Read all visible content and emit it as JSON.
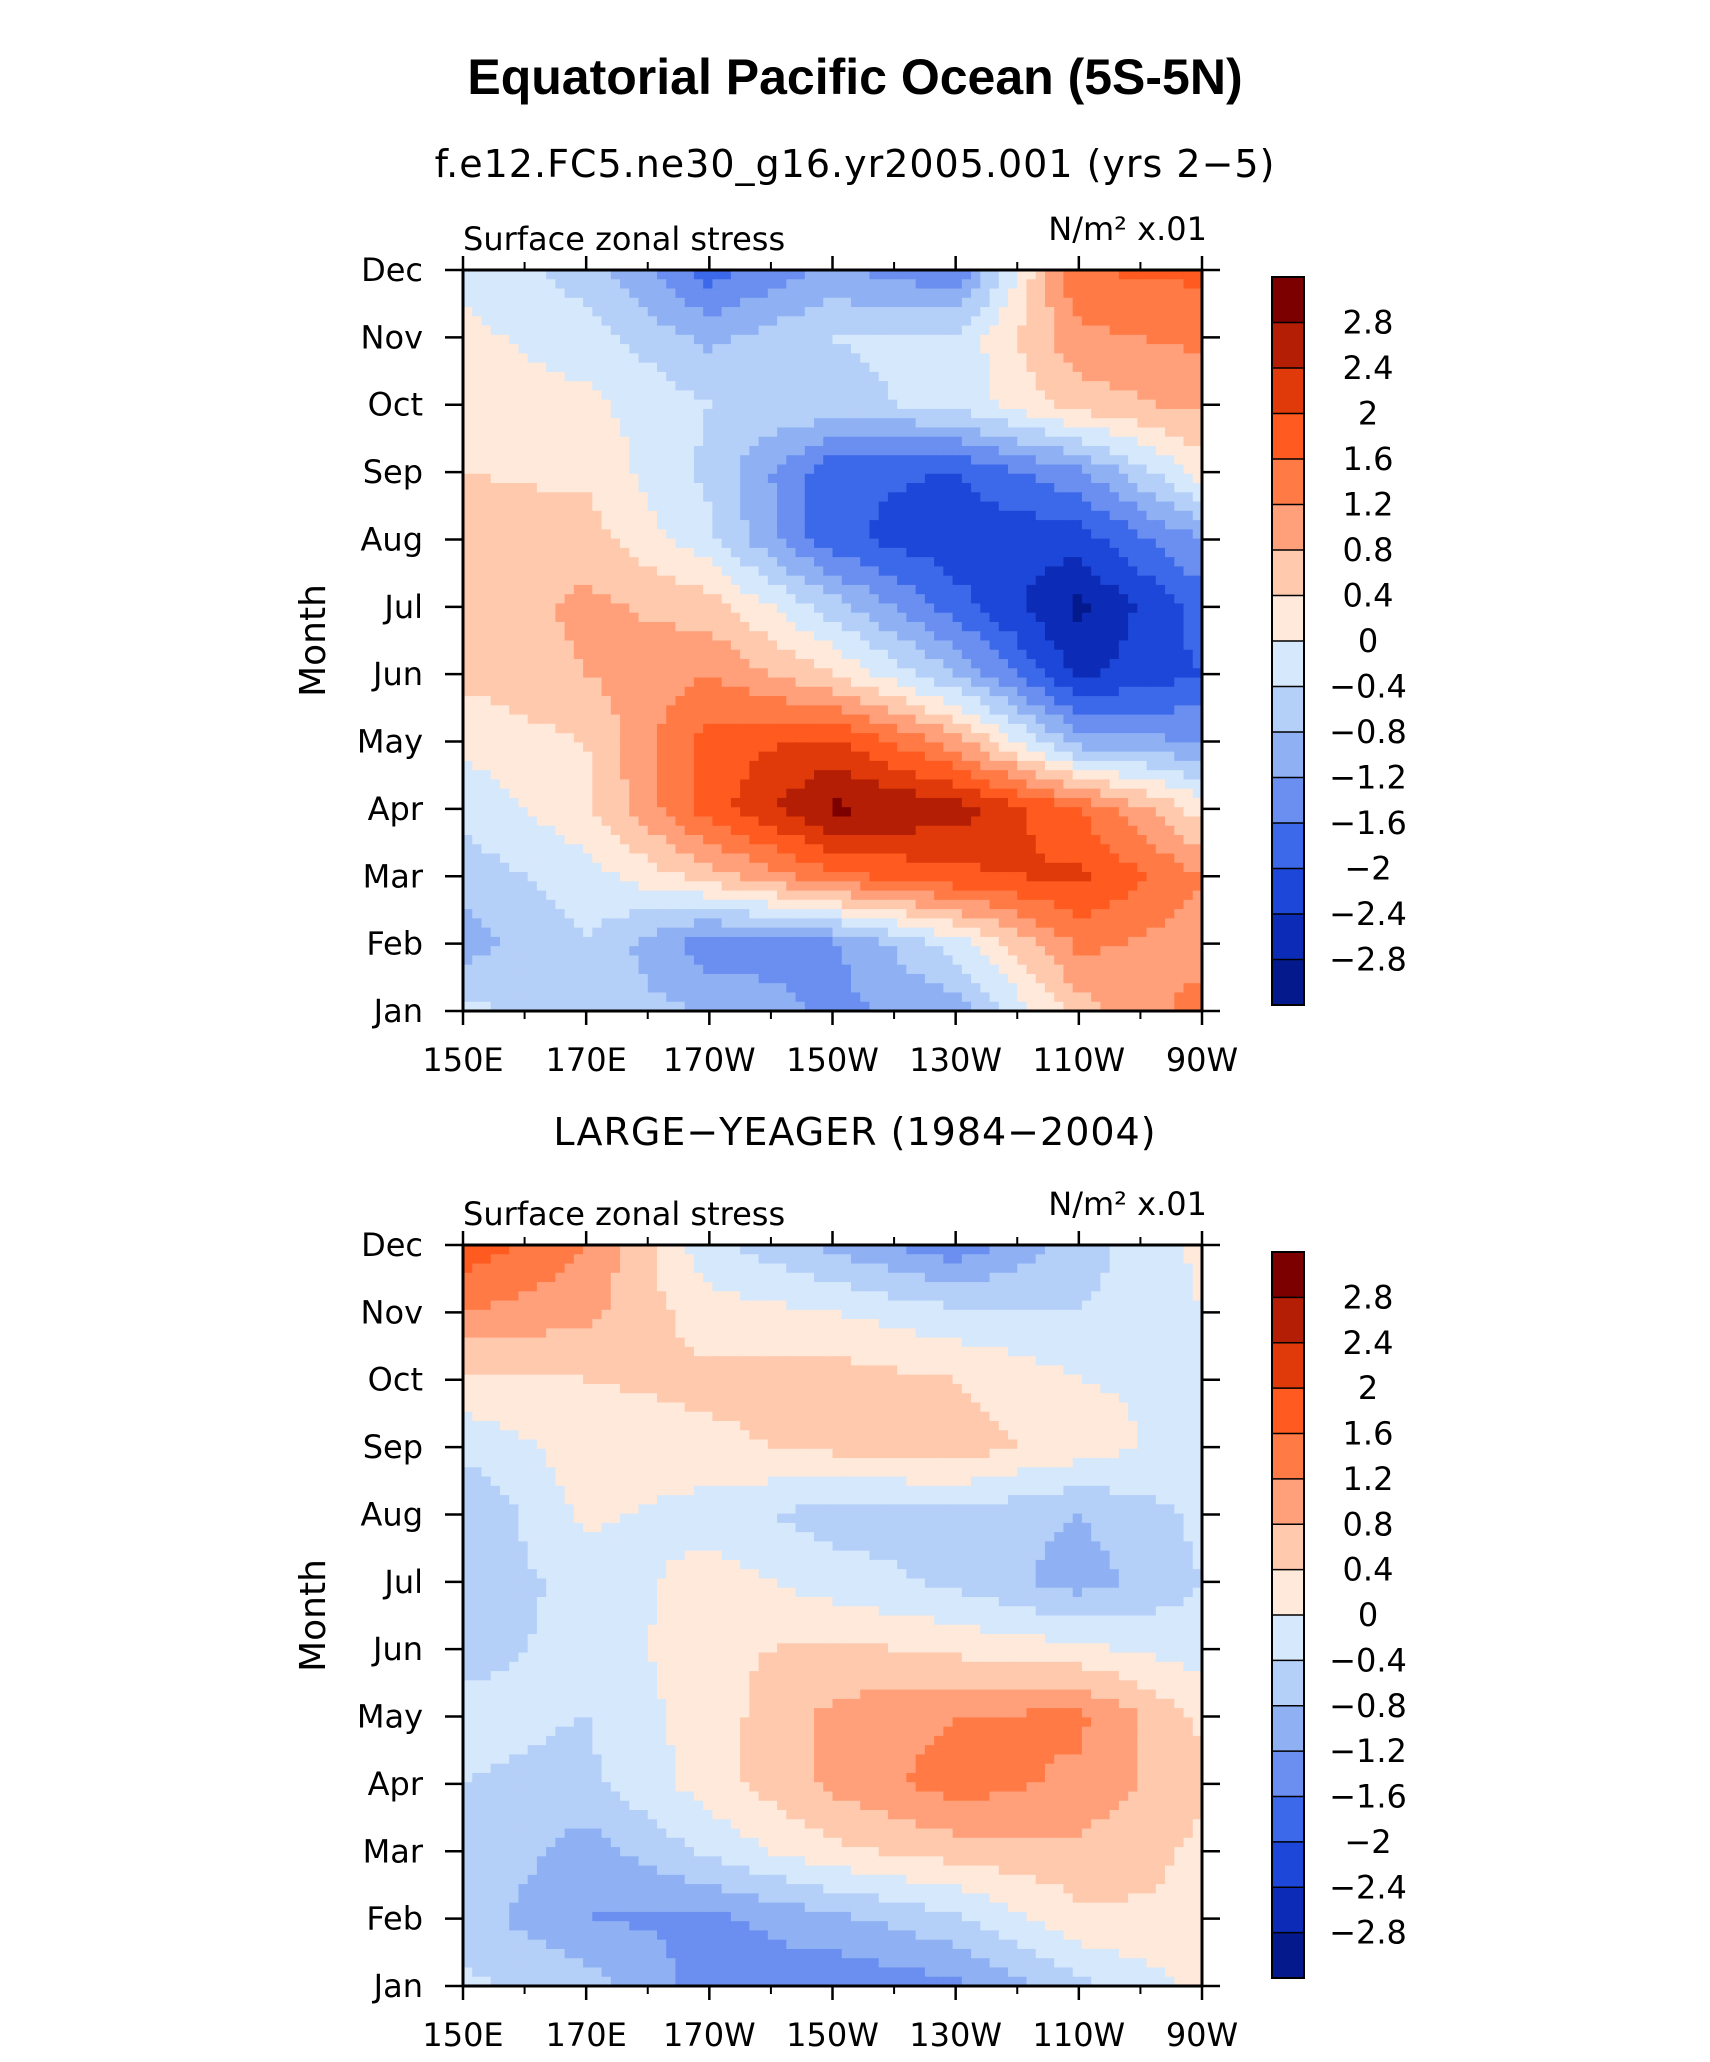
{
  "page": {
    "title": "Equatorial Pacific Ocean (5S-5N)"
  },
  "colorbar": {
    "labels": [
      "2.8",
      "2.4",
      "2",
      "1.6",
      "1.2",
      "0.8",
      "0.4",
      "0",
      "−0.4",
      "−0.8",
      "−1.2",
      "−1.6",
      "−2",
      "−2.4",
      "−2.8"
    ],
    "colors": [
      "#7d0000",
      "#b31e04",
      "#e03a0a",
      "#ff5a1f",
      "#ff7a45",
      "#ffa07a",
      "#ffc9ad",
      "#ffe9da",
      "#d6e8fb",
      "#b4cff8",
      "#8fb1f4",
      "#6a8ff0",
      "#3c69ea",
      "#1d47d8",
      "#0c2cb8",
      "#041a8c"
    ]
  },
  "chart_data": [
    {
      "type": "heatmap",
      "title": "f.e12.FC5.ne30_g16.yr2005.001 (yrs 2−5)",
      "left_label": "Surface zonal stress",
      "right_label": "N/m² x.01",
      "ylabel": "Month",
      "x_ticks": [
        "150E",
        "170E",
        "170W",
        "150W",
        "130W",
        "110W",
        "90W"
      ],
      "y_ticks": [
        "Jan",
        "Feb",
        "Mar",
        "Apr",
        "May",
        "Jun",
        "Jul",
        "Aug",
        "Sep",
        "Oct",
        "Nov",
        "Dec"
      ],
      "x": [
        150,
        170,
        190,
        210,
        230,
        250,
        270
      ],
      "y": [
        "Jan",
        "Feb",
        "Mar",
        "Apr",
        "May",
        "Jun",
        "Jul",
        "Aug",
        "Sep",
        "Oct",
        "Nov",
        "Dec"
      ],
      "levels": [
        -2.8,
        -2.4,
        -2,
        -1.6,
        -1.2,
        -0.8,
        -0.4,
        0,
        0.4,
        0.8,
        1.2,
        1.6,
        2,
        2.4,
        2.8
      ],
      "z": [
        [
          -0.3,
          -0.6,
          -0.8,
          -1.3,
          -1.0,
          0.6,
          1.4
        ],
        [
          -1.0,
          -0.4,
          -1.5,
          -1.3,
          -0.2,
          1.3,
          1.0
        ],
        [
          -0.6,
          -0.2,
          0.6,
          1.5,
          1.9,
          2.1,
          1.2
        ],
        [
          -0.3,
          0.3,
          1.8,
          2.9,
          2.6,
          1.6,
          0.2
        ],
        [
          0.1,
          0.4,
          1.8,
          2.1,
          1.0,
          -1.0,
          -1.2
        ],
        [
          0.5,
          0.8,
          1.2,
          0.4,
          -0.8,
          -2.5,
          -2.0
        ],
        [
          0.5,
          0.9,
          0.6,
          -0.6,
          -1.8,
          -2.9,
          -1.8
        ],
        [
          0.6,
          0.6,
          -0.3,
          -1.9,
          -2.3,
          -2.2,
          -1.2
        ],
        [
          0.4,
          0.3,
          -0.5,
          -1.9,
          -2.0,
          -1.3,
          0.2
        ],
        [
          0.2,
          0.1,
          -0.4,
          -0.5,
          -0.3,
          0.6,
          0.9
        ],
        [
          0.1,
          -0.2,
          -0.9,
          -0.4,
          -0.3,
          1.1,
          1.3
        ],
        [
          -0.1,
          -0.6,
          -1.8,
          -1.1,
          -1.6,
          1.6,
          1.7
        ]
      ]
    },
    {
      "type": "heatmap",
      "title": "LARGE−YEAGER (1984−2004)",
      "left_label": "Surface zonal stress",
      "right_label": "N/m² x.01",
      "ylabel": "Month",
      "x_ticks": [
        "150E",
        "170E",
        "170W",
        "150W",
        "130W",
        "110W",
        "90W"
      ],
      "y_ticks": [
        "Jan",
        "Feb",
        "Mar",
        "Apr",
        "May",
        "Jun",
        "Jul",
        "Aug",
        "Sep",
        "Oct",
        "Nov",
        "Dec"
      ],
      "x": [
        150,
        170,
        190,
        210,
        230,
        250,
        270
      ],
      "y": [
        "Jan",
        "Feb",
        "Mar",
        "Apr",
        "May",
        "Jun",
        "Jul",
        "Aug",
        "Sep",
        "Oct",
        "Nov",
        "Dec"
      ],
      "levels": [
        -2.8,
        -2.4,
        -2,
        -1.6,
        -1.2,
        -0.8,
        -0.4,
        0,
        0.4,
        0.8,
        1.2,
        1.6,
        2,
        2.4,
        2.8
      ],
      "z": [
        [
          -0.3,
          -0.6,
          -1.4,
          -1.5,
          -1.3,
          -0.5,
          0.1
        ],
        [
          -0.6,
          -1.2,
          -1.3,
          -0.9,
          -0.5,
          0.3,
          0.4
        ],
        [
          -0.4,
          -1.0,
          -0.3,
          0.3,
          0.6,
          0.7,
          0.3
        ],
        [
          -0.4,
          -0.5,
          0.2,
          0.9,
          1.4,
          1.1,
          0.5
        ],
        [
          -0.3,
          -0.4,
          0.2,
          0.9,
          1.2,
          1.3,
          0.3
        ],
        [
          -0.5,
          -0.3,
          0.3,
          0.5,
          0.3,
          0.1,
          -0.2
        ],
        [
          -0.6,
          -0.3,
          0.2,
          -0.2,
          -0.5,
          -1.0,
          -0.4
        ],
        [
          -0.8,
          0.1,
          -0.2,
          -0.6,
          -0.5,
          -0.8,
          -0.3
        ],
        [
          -0.3,
          0.2,
          0.3,
          0.5,
          0.6,
          0.2,
          -0.2
        ],
        [
          0.3,
          0.4,
          0.5,
          0.6,
          0.4,
          0.0,
          -0.1
        ],
        [
          1.2,
          0.9,
          0.2,
          0.0,
          -0.3,
          -0.4,
          0.0
        ],
        [
          1.9,
          1.2,
          -0.3,
          -0.9,
          -1.5,
          -0.6,
          0.1
        ]
      ]
    }
  ]
}
